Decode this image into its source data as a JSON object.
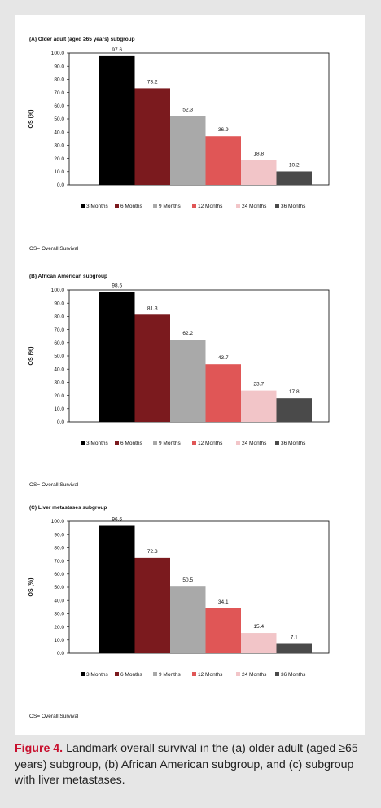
{
  "caption": {
    "label": "Figure 4.",
    "text": " Landmark overall survival in the (a) older adult (aged ≥65 years) subgroup, (b) African American subgroup, and (c) subgroup with liver metastases."
  },
  "legend_labels": [
    "3 Months",
    "6 Months",
    "9 Months",
    "12 Months",
    "24 Months",
    "36 Months"
  ],
  "colors": [
    "#000000",
    "#7b1a1e",
    "#a9a9a9",
    "#e05656",
    "#f2c5c8",
    "#4a4a4a"
  ],
  "chart_data": [
    {
      "type": "bar",
      "title": "(A) Older adult (aged ≥65 years) subgroup",
      "ylabel": "OS (%)",
      "xlabel": "",
      "ylim": [
        0,
        100
      ],
      "yticks": [
        "0.0",
        "10.0",
        "20.0",
        "30.0",
        "40.0",
        "50.0",
        "60.0",
        "70.0",
        "80.0",
        "90.0",
        "100.0"
      ],
      "categories": [
        "3 Months",
        "6 Months",
        "9 Months",
        "12 Months",
        "24 Months",
        "36 Months"
      ],
      "values": [
        97.6,
        73.2,
        52.3,
        36.9,
        18.8,
        10.2
      ],
      "value_labels": [
        "97.6",
        "73.2",
        "52.3",
        "36.9",
        "18.8",
        "10.2"
      ],
      "legend": "bottom",
      "note": "OS= Overall Survival"
    },
    {
      "type": "bar",
      "title": "(B) African American subgroup",
      "ylabel": "OS (%)",
      "xlabel": "",
      "ylim": [
        0,
        100
      ],
      "yticks": [
        "0.0",
        "10.0",
        "20.0",
        "30.0",
        "40.0",
        "50.0",
        "60.0",
        "70.0",
        "80.0",
        "90.0",
        "100.0"
      ],
      "categories": [
        "3 Months",
        "6 Months",
        "9 Months",
        "12 Months",
        "24 Months",
        "36 Months"
      ],
      "values": [
        98.5,
        81.3,
        62.2,
        43.7,
        23.7,
        17.8
      ],
      "value_labels": [
        "98.5",
        "81.3",
        "62.2",
        "43.7",
        "23.7",
        "17.8"
      ],
      "legend": "bottom",
      "note": "OS= Overall Survival"
    },
    {
      "type": "bar",
      "title": "(C) Liver metastases subgroup",
      "ylabel": "OS (%)",
      "xlabel": "",
      "ylim": [
        0,
        100
      ],
      "yticks": [
        "0.0",
        "10.0",
        "20.0",
        "30.0",
        "40.0",
        "50.0",
        "60.0",
        "70.0",
        "80.0",
        "90.0",
        "100.0"
      ],
      "categories": [
        "3 Months",
        "6 Months",
        "9 Months",
        "12 Months",
        "24 Months",
        "36 Months"
      ],
      "values": [
        96.6,
        72.3,
        50.5,
        34.1,
        15.4,
        7.1
      ],
      "value_labels": [
        "96.6",
        "72.3",
        "50.5",
        "34.1",
        "15.4",
        "7.1"
      ],
      "legend": "bottom",
      "note": "OS= Overall Survival"
    }
  ]
}
